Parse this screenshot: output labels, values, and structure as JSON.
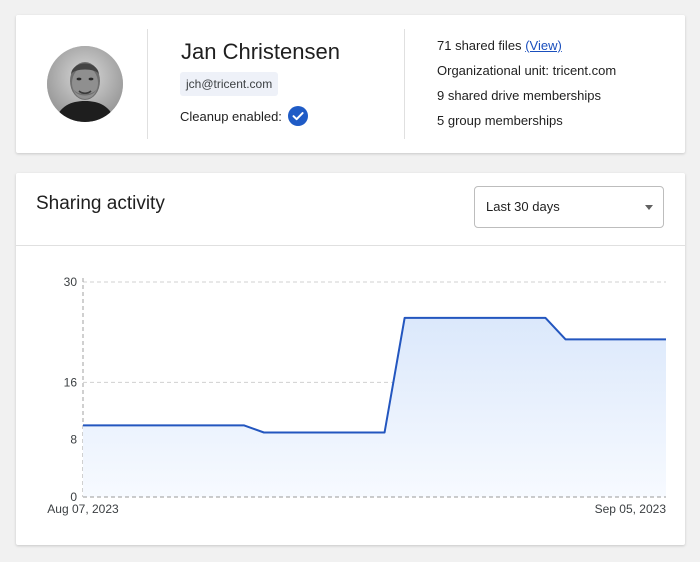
{
  "profile": {
    "name": "Jan Christensen",
    "email": "jch@tricent.com",
    "cleanup_label": "Cleanup enabled:",
    "cleanup_enabled": true,
    "stats": {
      "shared_files_text": "71 shared files",
      "view_link": "(View)",
      "org_unit": "Organizational unit: tricent.com",
      "drive_memberships": "9 shared drive memberships",
      "group_memberships": "5 group memberships"
    }
  },
  "activity": {
    "title": "Sharing activity",
    "range_select": {
      "value": "Last 30 days"
    }
  },
  "colors": {
    "accent": "#1f5bc6",
    "line": "#2356bf",
    "area_top": "#dbe8fb",
    "area_bottom": "#f7faff",
    "grid": "#d0d0d0"
  },
  "chart_data": {
    "type": "area",
    "x_start": "Aug 07, 2023",
    "x_end": "Sep 05, 2023",
    "x_tick_labels": [
      "Aug 07, 2023",
      "Sep 05, 2023"
    ],
    "y_ticks": [
      0,
      8,
      16,
      30
    ],
    "ylim": [
      0,
      30
    ],
    "grid": true,
    "series": [
      {
        "values": [
          10,
          10,
          10,
          10,
          10,
          10,
          10,
          10,
          10,
          9,
          9,
          9,
          9,
          9,
          9,
          9,
          25,
          25,
          25,
          25,
          25,
          25,
          25,
          25,
          22,
          22,
          22,
          22,
          22,
          22
        ]
      }
    ]
  }
}
